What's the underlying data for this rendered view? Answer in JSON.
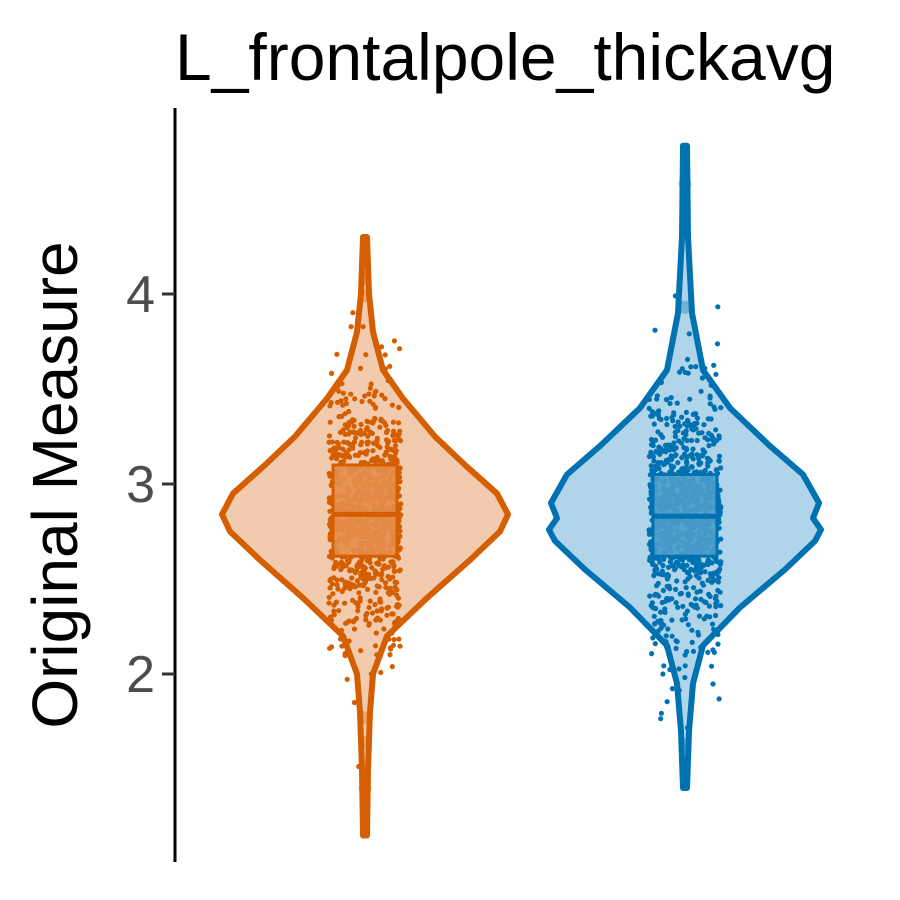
{
  "chart_data": {
    "type": "violin",
    "title": "L_frontalpole_thickavg",
    "ylabel": "Original Measure",
    "xlabel": "",
    "ylim": [
      1.0,
      4.95
    ],
    "yticks": [
      2,
      3,
      4
    ],
    "grid": false,
    "series": [
      {
        "color": "#D55E00",
        "fill": "#F2CBAE",
        "box_fill": "#E48E4D",
        "min": 1.15,
        "max": 4.3,
        "q1": 2.62,
        "median": 2.84,
        "q3": 3.1,
        "outliers": [
          4.08,
          3.99,
          1.77,
          1.64,
          1.4
        ]
      },
      {
        "color": "#0072B2",
        "fill": "#B0D4E9",
        "box_fill": "#4D9DCA",
        "min": 1.4,
        "max": 4.78,
        "q1": 2.62,
        "median": 2.83,
        "q3": 3.05,
        "outliers": [
          4.58,
          3.93,
          1.63
        ]
      }
    ]
  }
}
